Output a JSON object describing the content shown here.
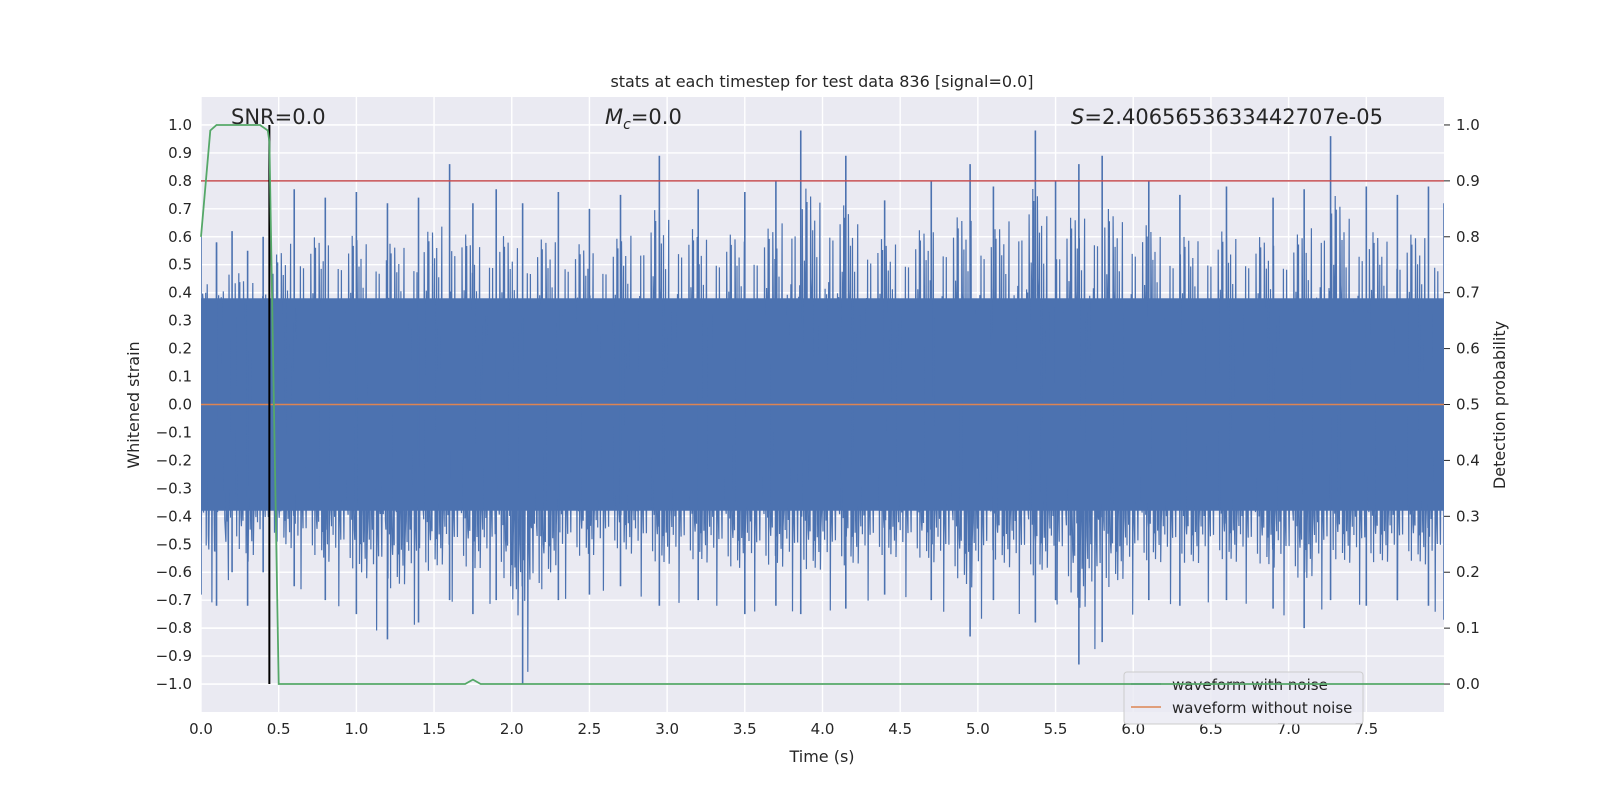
{
  "chart_data": {
    "type": "line",
    "title": "stats at each timestep for test data 836 [signal=0.0]",
    "xlabel": "Time (s)",
    "ylabel_left": "Whitened strain",
    "ylabel_right": "Detection probability",
    "xlim": [
      0.0,
      8.0
    ],
    "ylim_left": [
      -1.1,
      1.1
    ],
    "ylim_right": [
      -0.05,
      1.05
    ],
    "xticks": [
      "0.0",
      "0.5",
      "1.0",
      "1.5",
      "2.0",
      "2.5",
      "3.0",
      "3.5",
      "4.0",
      "4.5",
      "5.0",
      "5.5",
      "6.0",
      "6.5",
      "7.0",
      "7.5"
    ],
    "yticks_left": [
      "1.0",
      "0.9",
      "0.8",
      "0.7",
      "0.6",
      "0.5",
      "0.4",
      "0.3",
      "0.2",
      "0.1",
      "0.0",
      "−0.1",
      "−0.2",
      "−0.3",
      "−0.4",
      "−0.5",
      "−0.6",
      "−0.7",
      "−0.8",
      "−0.9",
      "−1.0"
    ],
    "yticks_right": [
      "1.0",
      "0.9",
      "0.8",
      "0.7",
      "0.6",
      "0.5",
      "0.4",
      "0.3",
      "0.2",
      "0.1",
      "0.0"
    ],
    "grid": true,
    "annotations": {
      "snr": "SNR=0.0",
      "mc_symbol": "M",
      "mc_sub": "c",
      "mc_value": "=0.0",
      "s_symbol": "S",
      "s_value": "=2.4065653633442707e-05"
    },
    "legend": {
      "placement": "lower-right",
      "entries": [
        "waveform with noise",
        "waveform without noise"
      ]
    },
    "colors": {
      "noise": "#4c72b0",
      "clean": "#dd8452",
      "probability": "#55a868",
      "threshold": "#c44e52",
      "marker": "#000000",
      "background": "#eaeaf2"
    },
    "series": [
      {
        "name": "waveform with noise",
        "axis": "left",
        "note": "dense noise envelope, peak-to-peak per time bin (approximate)",
        "t": [
          0.0,
          0.1,
          0.2,
          0.3,
          0.4,
          0.6,
          0.8,
          1.0,
          1.2,
          1.4,
          1.6,
          1.75,
          1.9,
          2.07,
          2.3,
          2.5,
          2.7,
          2.95,
          3.2,
          3.5,
          3.7,
          3.86,
          4.15,
          4.4,
          4.7,
          4.95,
          5.1,
          5.37,
          5.5,
          5.65,
          5.8,
          6.1,
          6.3,
          6.6,
          6.9,
          7.1,
          7.27,
          7.5,
          7.7,
          7.9,
          8.0
        ],
        "max": [
          0.6,
          0.58,
          0.62,
          0.55,
          0.6,
          0.77,
          0.74,
          0.76,
          0.72,
          0.74,
          0.86,
          0.72,
          0.77,
          0.72,
          0.76,
          0.7,
          0.75,
          0.89,
          0.77,
          0.76,
          0.8,
          0.98,
          0.89,
          0.73,
          0.8,
          0.86,
          0.78,
          0.98,
          0.8,
          0.86,
          0.89,
          0.8,
          0.75,
          0.78,
          0.74,
          0.77,
          0.96,
          0.78,
          0.75,
          0.78,
          0.72
        ],
        "min": [
          -0.68,
          -0.72,
          -0.6,
          -0.72,
          -0.6,
          -0.65,
          -0.7,
          -0.75,
          -0.84,
          -0.78,
          -0.7,
          -0.75,
          -0.7,
          -1.0,
          -0.7,
          -0.68,
          -0.65,
          -0.72,
          -0.7,
          -0.75,
          -0.72,
          -0.75,
          -0.73,
          -0.68,
          -0.7,
          -0.83,
          -0.7,
          -0.78,
          -0.7,
          -0.93,
          -0.85,
          -0.7,
          -0.72,
          -0.7,
          -0.73,
          -0.8,
          -0.7,
          -0.72,
          -0.7,
          -0.72,
          -0.77
        ]
      },
      {
        "name": "waveform without noise",
        "axis": "left",
        "t": [
          0.0,
          8.0
        ],
        "values": [
          0.0,
          0.0
        ]
      },
      {
        "name": "detection probability",
        "axis": "right",
        "t": [
          0.0,
          0.06,
          0.1,
          0.2,
          0.3,
          0.38,
          0.43,
          0.44,
          0.5,
          0.6,
          1.0,
          1.5,
          1.7,
          1.75,
          1.8,
          1.9,
          2.5,
          8.0
        ],
        "values": [
          0.8,
          0.99,
          1.0,
          1.0,
          1.0,
          1.0,
          0.99,
          0.97,
          0.0,
          0.0,
          0.0,
          0.0,
          0.0,
          0.008,
          0.0,
          0.0,
          0.0,
          0.0
        ]
      },
      {
        "name": "threshold",
        "axis": "right",
        "t": [
          0.0,
          8.0
        ],
        "values": [
          0.9,
          0.9
        ]
      },
      {
        "name": "detection marker",
        "axis": "left",
        "t": [
          0.44,
          0.44
        ],
        "values": [
          -1.0,
          1.0
        ]
      }
    ]
  }
}
